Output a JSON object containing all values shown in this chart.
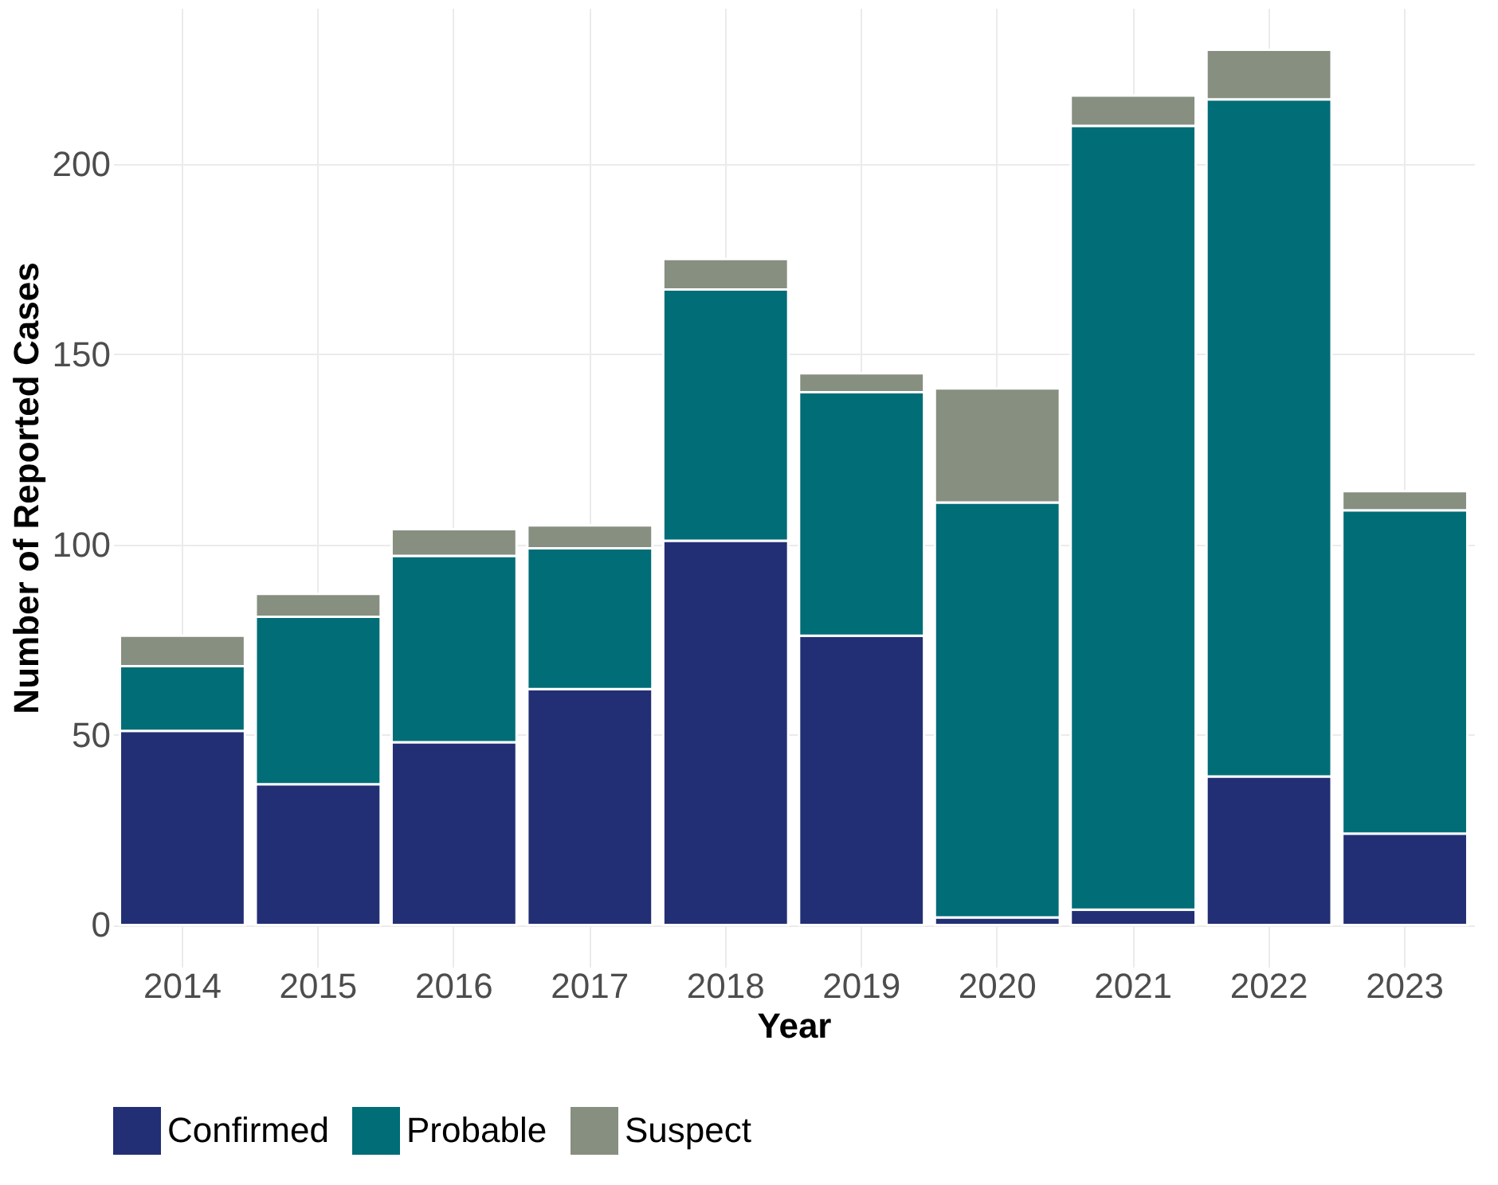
{
  "chart_data": {
    "type": "bar",
    "stacked": true,
    "xlabel": "Year",
    "ylabel": "Number of Reported Cases",
    "categories": [
      "2014",
      "2015",
      "2016",
      "2017",
      "2018",
      "2019",
      "2020",
      "2021",
      "2022",
      "2023"
    ],
    "series": [
      {
        "name": "Confirmed",
        "color": "#232f74",
        "values": [
          51,
          37,
          48,
          62,
          101,
          76,
          2,
          4,
          39,
          24
        ]
      },
      {
        "name": "Probable",
        "color": "#006d77",
        "values": [
          17,
          44,
          49,
          37,
          66,
          64,
          109,
          206,
          178,
          85
        ]
      },
      {
        "name": "Suspect",
        "color": "#878f80",
        "values": [
          8,
          6,
          7,
          6,
          8,
          5,
          30,
          8,
          13,
          5
        ]
      }
    ],
    "ylim": [
      -11,
      241
    ],
    "yticks": [
      0,
      50,
      100,
      150,
      200
    ],
    "grid": true,
    "legend": "bottom"
  }
}
